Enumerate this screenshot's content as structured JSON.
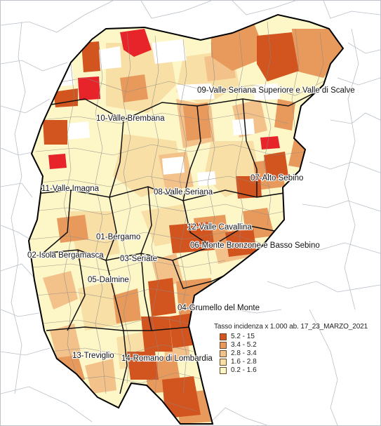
{
  "map": {
    "districts": [
      {
        "id": "09",
        "label": "09-Valle Seriana Superiore e Valle di Scalve"
      },
      {
        "id": "10",
        "label": "10-Valle Brembana"
      },
      {
        "id": "11",
        "label": "11-Valle Imagna"
      },
      {
        "id": "08",
        "label": "08-Valle Seriana"
      },
      {
        "id": "07",
        "label": "07-Alto Sebino"
      },
      {
        "id": "06",
        "label": "06-Monte Bronzone e Basso Sebino"
      },
      {
        "id": "12",
        "label": "12-Valle Cavallina"
      },
      {
        "id": "01",
        "label": "01-Bergamo"
      },
      {
        "id": "02",
        "label": "02-Isola Bergamasca"
      },
      {
        "id": "03",
        "label": "03-Seriate"
      },
      {
        "id": "05",
        "label": "05-Dalmine"
      },
      {
        "id": "04",
        "label": "04-Grumello del Monte"
      },
      {
        "id": "13",
        "label": "13-Treviglio"
      },
      {
        "id": "14",
        "label": "14-Romano di Lombardia"
      }
    ]
  },
  "legend": {
    "title": "Tasso incidenza x 1.000 ab. 17_23_MARZO_2021",
    "classes": [
      {
        "label": "5.2 - 15",
        "color": "#d2541f"
      },
      {
        "label": "3.4 - 5.2",
        "color": "#e89a5c"
      },
      {
        "label": "2.8 - 3.4",
        "color": "#f3c18a"
      },
      {
        "label": "1.6 - 2.8",
        "color": "#f8dfa6"
      },
      {
        "label": "0.2 - 1.6",
        "color": "#fdf6c6"
      }
    ],
    "extra_class_color": "#e8242b"
  }
}
